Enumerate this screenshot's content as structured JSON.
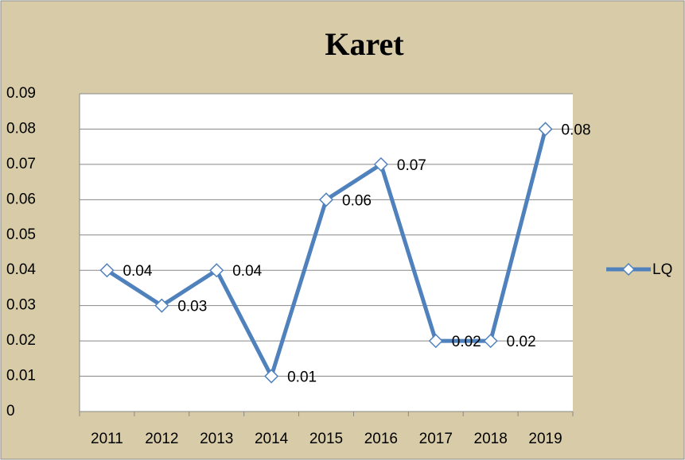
{
  "chart_data": {
    "type": "line",
    "title": "Karet",
    "categories": [
      "2011",
      "2012",
      "2013",
      "2014",
      "2015",
      "2016",
      "2017",
      "2018",
      "2019"
    ],
    "series": [
      {
        "name": "LQ",
        "color": "#4f81bd",
        "values": [
          0.04,
          0.03,
          0.04,
          0.01,
          0.06,
          0.07,
          0.02,
          0.02,
          0.08
        ]
      }
    ],
    "ylim": [
      0,
      0.09
    ],
    "yticks": [
      0,
      0.01,
      0.02,
      0.03,
      0.04,
      0.05,
      0.06,
      0.07,
      0.08,
      0.09
    ],
    "grid": true,
    "legend": "right"
  }
}
